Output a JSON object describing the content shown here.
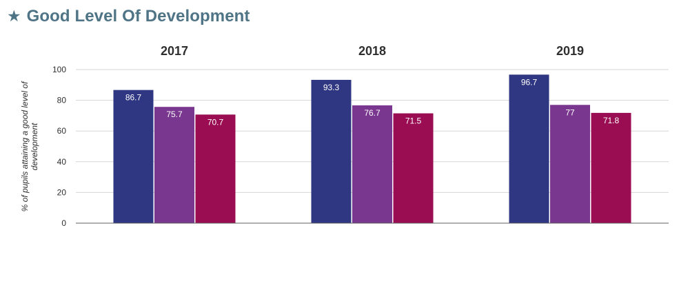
{
  "header": {
    "icon": "star-icon",
    "icon_glyph": "★",
    "title": "Good Level Of Development"
  },
  "colors": {
    "title": "#4f7486",
    "grid": "#d6d6d6",
    "axis": "#5f5f5f",
    "series_1": "#2f3682",
    "series_2": "#7a378f",
    "series_3": "#9b0d52"
  },
  "chart_data": {
    "type": "bar",
    "title": "Good Level Of Development",
    "ylabel_lines": [
      "% of pupils attaining a good level of",
      "development"
    ],
    "ylim": [
      0,
      100
    ],
    "yticks": [
      "0",
      "20",
      "40",
      "60",
      "80",
      "100"
    ],
    "grid": true,
    "legend": "",
    "groups": [
      "2017",
      "2018",
      "2019"
    ],
    "series": [
      {
        "values": [
          86.7,
          93.3,
          96.7
        ],
        "labels": [
          "86.7",
          "93.3",
          "96.7"
        ],
        "color": "#2f3682"
      },
      {
        "values": [
          75.7,
          76.7,
          77
        ],
        "labels": [
          "75.7",
          "76.7",
          "77"
        ],
        "color": "#7a378f"
      },
      {
        "values": [
          70.7,
          71.5,
          71.8
        ],
        "labels": [
          "70.7",
          "71.5",
          "71.8"
        ],
        "color": "#9b0d52"
      }
    ]
  }
}
